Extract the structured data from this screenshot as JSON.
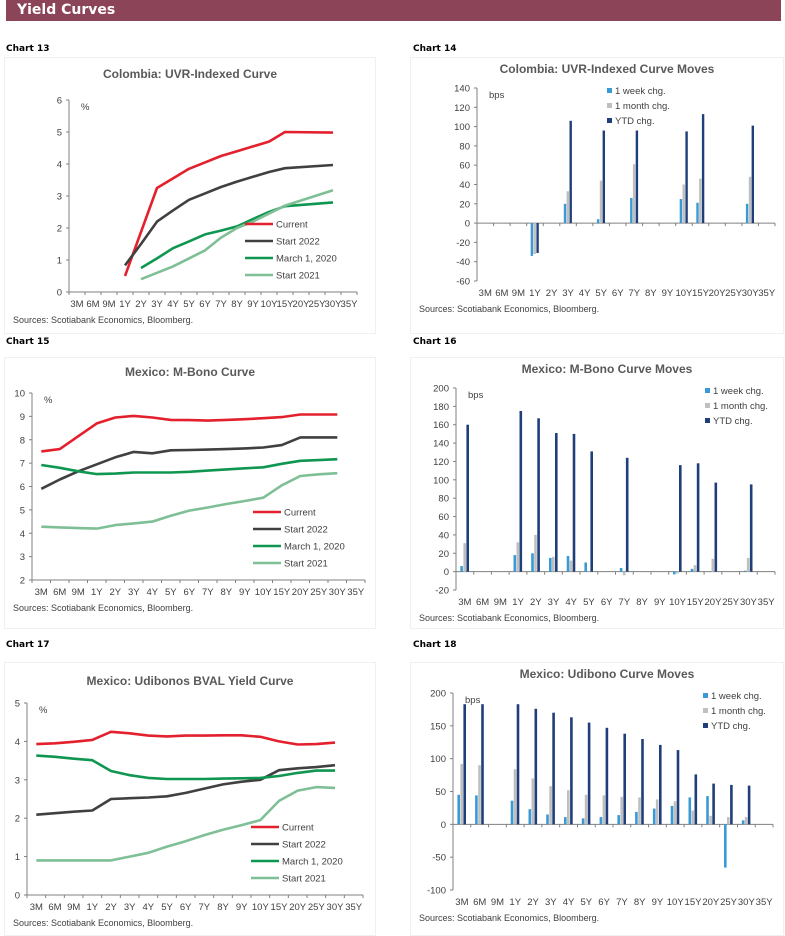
{
  "header": {
    "title": "Yield Curves"
  },
  "colors": {
    "header_bg": "#8c4558",
    "current": "#e3202d",
    "start2022": "#404040",
    "march2020": "#0f9650",
    "start2021": "#7fbf95",
    "week": "#3a9ad6",
    "month": "#bfbfbf",
    "ytd": "#1f3f7a"
  },
  "charts": [
    {
      "label": "Chart 13"
    },
    {
      "label": "Chart 14"
    },
    {
      "label": "Chart 15"
    },
    {
      "label": "Chart 16"
    },
    {
      "label": "Chart 17"
    },
    {
      "label": "Chart 18"
    }
  ],
  "chart_data": [
    {
      "id": "c13",
      "type": "line",
      "title": "Colombia: UVR-Indexed Curve",
      "ylabel": "%",
      "source": "Sources: Scotiabank Economics, Bloomberg.",
      "categories": [
        "3M",
        "6M",
        "9M",
        "1Y",
        "2Y",
        "3Y",
        "4Y",
        "5Y",
        "6Y",
        "7Y",
        "8Y",
        "9Y",
        "10Y",
        "15Y",
        "20Y",
        "25Y",
        "30Y",
        "35Y"
      ],
      "ylim": [
        0,
        6
      ],
      "yticks": [
        0,
        1,
        2,
        3,
        4,
        5,
        6
      ],
      "legend": "bottom-right",
      "series": [
        {
          "name": "Current",
          "color_key": "current",
          "values": [
            null,
            null,
            null,
            0.5,
            null,
            3.25,
            3.55,
            3.85,
            4.05,
            4.25,
            4.4,
            4.55,
            4.7,
            5.0,
            null,
            null,
            4.98,
            null
          ]
        },
        {
          "name": "Start 2022",
          "color_key": "start2022",
          "values": [
            null,
            null,
            null,
            0.83,
            1.5,
            2.2,
            2.55,
            2.88,
            3.08,
            3.28,
            3.45,
            3.6,
            3.75,
            3.87,
            null,
            null,
            3.97,
            null
          ]
        },
        {
          "name": "March 1, 2020",
          "color_key": "march2020",
          "values": [
            null,
            null,
            null,
            null,
            0.75,
            1.05,
            1.37,
            1.58,
            1.8,
            1.92,
            2.05,
            2.28,
            2.5,
            2.68,
            null,
            null,
            2.8,
            null
          ]
        },
        {
          "name": "Start 2021",
          "color_key": "start2021",
          "values": [
            null,
            null,
            null,
            null,
            0.4,
            0.6,
            0.8,
            1.05,
            1.3,
            1.7,
            2.0,
            2.2,
            2.45,
            2.7,
            null,
            null,
            3.18,
            null
          ]
        }
      ]
    },
    {
      "id": "c14",
      "type": "bar",
      "title": "Colombia: UVR-Indexed Curve Moves",
      "ylabel": "bps",
      "source": "Sources: Scotiabank Economics, Bloomberg.",
      "categories": [
        "3M",
        "6M",
        "9M",
        "1Y",
        "2Y",
        "3Y",
        "4Y",
        "5Y",
        "6Y",
        "7Y",
        "8Y",
        "9Y",
        "10Y",
        "15Y",
        "20Y",
        "25Y",
        "30Y",
        "35Y"
      ],
      "ylim": [
        -60,
        140
      ],
      "yticks": [
        -60,
        -40,
        -20,
        0,
        20,
        40,
        60,
        80,
        100,
        120,
        140
      ],
      "legend": "top-center",
      "series": [
        {
          "name": "1 week chg.",
          "color_key": "week",
          "values": [
            null,
            null,
            null,
            -34,
            null,
            20,
            null,
            4,
            null,
            26,
            null,
            null,
            25,
            21,
            null,
            null,
            20,
            null
          ]
        },
        {
          "name": "1 month chg.",
          "color_key": "month",
          "values": [
            null,
            null,
            null,
            -32,
            null,
            33,
            null,
            44,
            null,
            61,
            null,
            null,
            40,
            46,
            null,
            null,
            48,
            null
          ]
        },
        {
          "name": "YTD chg.",
          "color_key": "ytd",
          "values": [
            null,
            null,
            null,
            -31,
            null,
            106,
            null,
            96,
            null,
            96,
            null,
            null,
            95,
            113,
            null,
            null,
            101,
            null
          ]
        }
      ]
    },
    {
      "id": "c15",
      "type": "line",
      "title": "Mexico: M-Bono Curve",
      "ylabel": "%",
      "source": "Sources: Scotiabank Economics, Bloomberg.",
      "categories": [
        "3M",
        "6M",
        "9M",
        "1Y",
        "2Y",
        "3Y",
        "4Y",
        "5Y",
        "6Y",
        "7Y",
        "8Y",
        "9Y",
        "10Y",
        "15Y",
        "20Y",
        "25Y",
        "30Y",
        "35Y"
      ],
      "ylim": [
        2,
        10
      ],
      "yticks": [
        2,
        3,
        4,
        5,
        6,
        7,
        8,
        9,
        10
      ],
      "legend": "bottom-right",
      "series": [
        {
          "name": "Current",
          "color_key": "current",
          "values": [
            7.5,
            7.6,
            8.15,
            8.7,
            8.95,
            9.02,
            8.95,
            8.85,
            8.84,
            8.82,
            8.85,
            8.88,
            8.92,
            8.97,
            9.08,
            9.08,
            9.08,
            null
          ]
        },
        {
          "name": "Start 2022",
          "color_key": "start2022",
          "values": [
            5.9,
            6.3,
            6.65,
            6.95,
            7.25,
            7.48,
            7.42,
            7.55,
            7.56,
            7.58,
            7.6,
            7.63,
            7.67,
            7.77,
            8.1,
            8.1,
            8.1,
            null
          ]
        },
        {
          "name": "March 1, 2020",
          "color_key": "march2020",
          "values": [
            6.92,
            6.8,
            6.65,
            6.53,
            6.55,
            6.6,
            6.6,
            6.6,
            6.63,
            6.68,
            6.73,
            6.78,
            6.82,
            6.97,
            7.1,
            7.13,
            7.17,
            null
          ]
        },
        {
          "name": "Start 2021",
          "color_key": "start2021",
          "values": [
            4.28,
            4.25,
            4.22,
            4.2,
            4.35,
            4.42,
            4.5,
            4.75,
            4.97,
            5.1,
            5.25,
            5.38,
            5.52,
            6.05,
            6.45,
            6.52,
            6.57,
            null
          ]
        }
      ]
    },
    {
      "id": "c16",
      "type": "bar",
      "title": "Mexico: M-Bono Curve Moves",
      "ylabel": "bps",
      "source": "Sources: Scotiabank Economics, Bloomberg.",
      "categories": [
        "3M",
        "6M",
        "9M",
        "1Y",
        "2Y",
        "3Y",
        "4Y",
        "5Y",
        "6Y",
        "7Y",
        "8Y",
        "9Y",
        "10Y",
        "15Y",
        "20Y",
        "25Y",
        "30Y",
        "35Y"
      ],
      "ylim": [
        -20,
        200
      ],
      "yticks": [
        -20,
        0,
        20,
        40,
        60,
        80,
        100,
        120,
        140,
        160,
        180,
        200
      ],
      "legend": "top-right",
      "series": [
        {
          "name": "1 week chg.",
          "color_key": "week",
          "values": [
            6,
            null,
            null,
            18,
            20,
            15,
            17,
            10,
            null,
            4,
            null,
            null,
            -3,
            3,
            0,
            null,
            1,
            null
          ]
        },
        {
          "name": "1 month chg.",
          "color_key": "month",
          "values": [
            31,
            null,
            null,
            32,
            40,
            16,
            12,
            0,
            null,
            -4,
            null,
            null,
            -2,
            7,
            14,
            null,
            15,
            null
          ]
        },
        {
          "name": "YTD chg.",
          "color_key": "ytd",
          "values": [
            160,
            null,
            null,
            175,
            167,
            151,
            150,
            131,
            null,
            124,
            null,
            null,
            116,
            118,
            97,
            null,
            95,
            null
          ]
        }
      ]
    },
    {
      "id": "c17",
      "type": "line",
      "title": "Mexico: Udibonos BVAL Yield Curve",
      "ylabel": "%",
      "source": "Sources: Scotiabank Economics, Bloomberg.",
      "categories": [
        "3M",
        "6M",
        "9M",
        "1Y",
        "2Y",
        "3Y",
        "4Y",
        "5Y",
        "6Y",
        "7Y",
        "8Y",
        "9Y",
        "10Y",
        "15Y",
        "20Y",
        "25Y",
        "30Y",
        "35Y"
      ],
      "ylim": [
        0,
        5
      ],
      "yticks": [
        0,
        1,
        2,
        3,
        4,
        5
      ],
      "legend": "bottom-right",
      "series": [
        {
          "name": "Current",
          "color_key": "current",
          "values": [
            3.93,
            3.95,
            3.99,
            4.04,
            4.25,
            4.21,
            4.15,
            4.13,
            4.15,
            4.15,
            4.16,
            4.16,
            4.12,
            4.0,
            3.92,
            3.93,
            3.97,
            null
          ]
        },
        {
          "name": "Start 2022",
          "color_key": "start2022",
          "values": [
            2.09,
            2.13,
            2.17,
            2.2,
            2.5,
            2.52,
            2.54,
            2.57,
            2.66,
            2.77,
            2.88,
            2.95,
            3.0,
            3.25,
            3.3,
            3.33,
            3.38,
            null
          ]
        },
        {
          "name": "March 1, 2020",
          "color_key": "march2020",
          "values": [
            3.63,
            3.6,
            3.55,
            3.51,
            3.23,
            3.12,
            3.05,
            3.02,
            3.02,
            3.02,
            3.03,
            3.04,
            3.05,
            3.1,
            3.18,
            3.24,
            3.24,
            null
          ]
        },
        {
          "name": "Start 2021",
          "color_key": "start2021",
          "values": [
            0.9,
            0.9,
            0.9,
            0.9,
            0.9,
            1.0,
            1.1,
            1.26,
            1.4,
            1.56,
            1.7,
            1.82,
            1.95,
            2.45,
            2.72,
            2.81,
            2.79,
            null
          ]
        }
      ]
    },
    {
      "id": "c18",
      "type": "bar",
      "title": "Mexico: Udibono Curve Moves",
      "ylabel": "bps",
      "source": "Sources: Scotiabank Economics, Bloomberg.",
      "categories": [
        "3M",
        "6M",
        "9M",
        "1Y",
        "2Y",
        "3Y",
        "4Y",
        "5Y",
        "6Y",
        "7Y",
        "8Y",
        "9Y",
        "10Y",
        "15Y",
        "20Y",
        "25Y",
        "30Y",
        "35Y"
      ],
      "ylim": [
        -100,
        200
      ],
      "yticks": [
        -100,
        -50,
        0,
        50,
        100,
        150,
        200
      ],
      "legend": "top-right",
      "series": [
        {
          "name": "1 week chg.",
          "color_key": "week",
          "values": [
            45,
            44,
            null,
            36,
            23,
            15,
            11,
            9,
            11,
            14,
            19,
            24,
            28,
            41,
            43,
            -66,
            6,
            null
          ]
        },
        {
          "name": "1 month chg.",
          "color_key": "month",
          "values": [
            92,
            90,
            null,
            84,
            70,
            58,
            52,
            45,
            44,
            42,
            41,
            38,
            35,
            21,
            13,
            11,
            11,
            null
          ]
        },
        {
          "name": "YTD chg.",
          "color_key": "ytd",
          "values": [
            183,
            183,
            null,
            183,
            176,
            170,
            163,
            155,
            147,
            138,
            130,
            121,
            113,
            76,
            62,
            60,
            59,
            null
          ]
        }
      ]
    }
  ]
}
